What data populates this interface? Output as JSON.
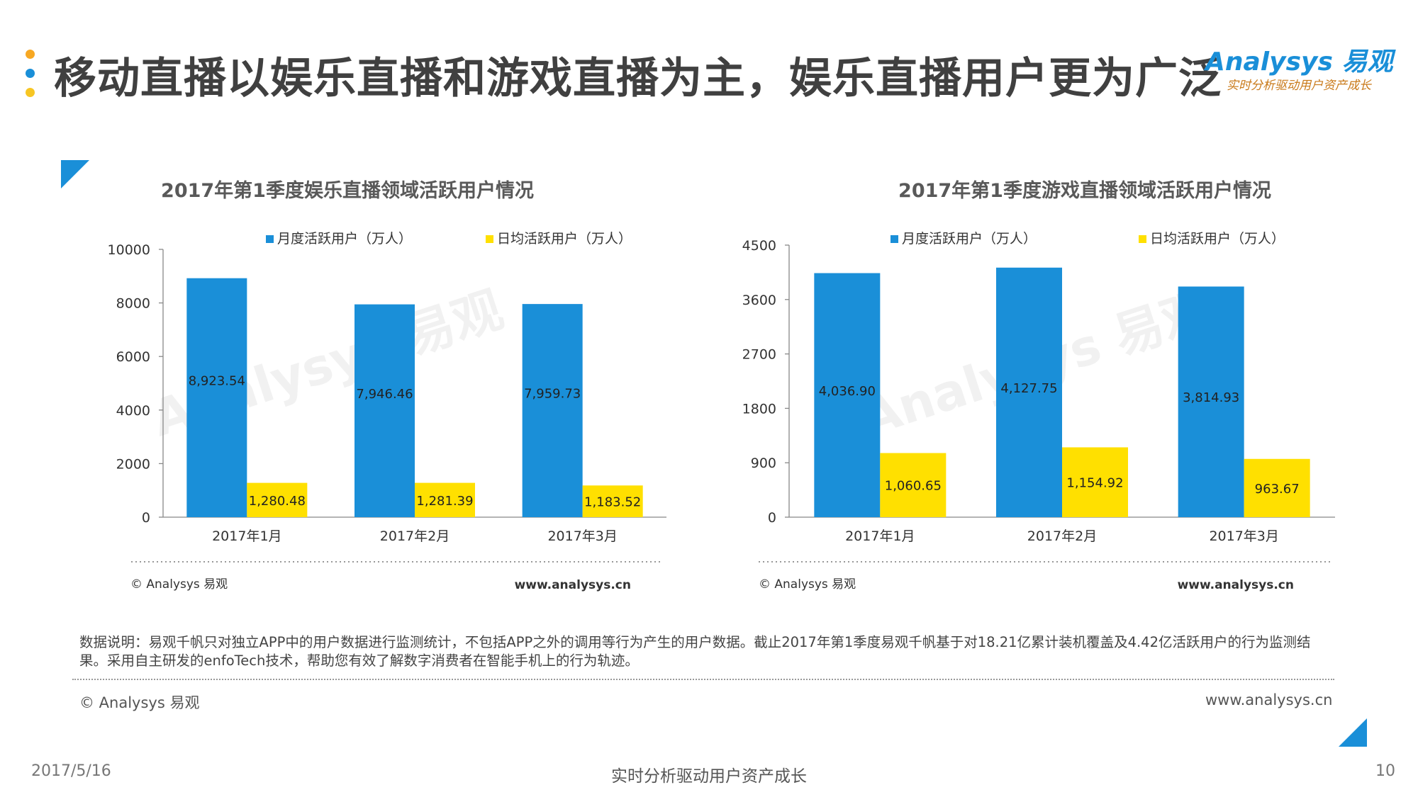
{
  "page_title": "移动直播以娱乐直播和游戏直播为主，娱乐直播用户更为广泛",
  "logo": {
    "name": "Analysys 易观",
    "slogan": "实时分析驱动用户资产成长"
  },
  "colors": {
    "accent": "#1a8fd8",
    "monthly": "#1a8fd8",
    "daily": "#ffe000",
    "dots": [
      "#f7a823",
      "#1a8fd8",
      "#f7c623"
    ]
  },
  "chart_data": [
    {
      "type": "bar",
      "title": "2017年第1季度娱乐直播领域活跃用户情况",
      "categories": [
        "2017年1月",
        "2017年2月",
        "2017年3月"
      ],
      "series": [
        {
          "name": "月度活跃用户（万人）",
          "values": [
            8923.54,
            7946.46,
            7959.73
          ],
          "labels": [
            "8,923.54",
            "7,946.46",
            "7,959.73"
          ]
        },
        {
          "name": "日均活跃用户（万人）",
          "values": [
            1280.48,
            1281.39,
            1183.52
          ],
          "labels": [
            "1,280.48",
            "1,281.39",
            "1,183.52"
          ]
        }
      ],
      "ylim": [
        0,
        10000
      ],
      "yticks": [
        "0",
        "2000",
        "4000",
        "6000",
        "8000",
        "10000"
      ],
      "legend": "top",
      "source_left": "© Analysys 易观",
      "source_right": "www.analysys.cn"
    },
    {
      "type": "bar",
      "title": "2017年第1季度游戏直播领域活跃用户情况",
      "categories": [
        "2017年1月",
        "2017年2月",
        "2017年3月"
      ],
      "series": [
        {
          "name": "月度活跃用户（万人）",
          "values": [
            4036.9,
            4127.75,
            3814.93
          ],
          "labels": [
            "4,036.90",
            "4,127.75",
            "3,814.93"
          ]
        },
        {
          "name": "日均活跃用户（万人）",
          "values": [
            1060.65,
            1154.92,
            963.67
          ],
          "labels": [
            "1,060.65",
            "1,154.92",
            "963.67"
          ]
        }
      ],
      "ylim": [
        0,
        4500
      ],
      "yticks": [
        "0",
        "900",
        "1800",
        "2700",
        "3600",
        "4500"
      ],
      "legend": "top",
      "source_left": "© Analysys 易观",
      "source_right": "www.analysys.cn"
    }
  ],
  "note": "数据说明：易观千帆只对独立APP中的用户数据进行监测统计，不包括APP之外的调用等行为产生的用户数据。截止2017年第1季度易观千帆基于对18.21亿累计装机覆盖及4.42亿活跃用户的行为监测结果。采用自主研发的enfoTech技术，帮助您有效了解数字消费者在智能手机上的行为轨迹。",
  "footer": {
    "left": "© Analysys 易观",
    "right": "www.analysys.cn"
  },
  "page_footer": {
    "date": "2017/5/16",
    "slogan": "实时分析驱动用户资产成长",
    "page_number": "10"
  }
}
